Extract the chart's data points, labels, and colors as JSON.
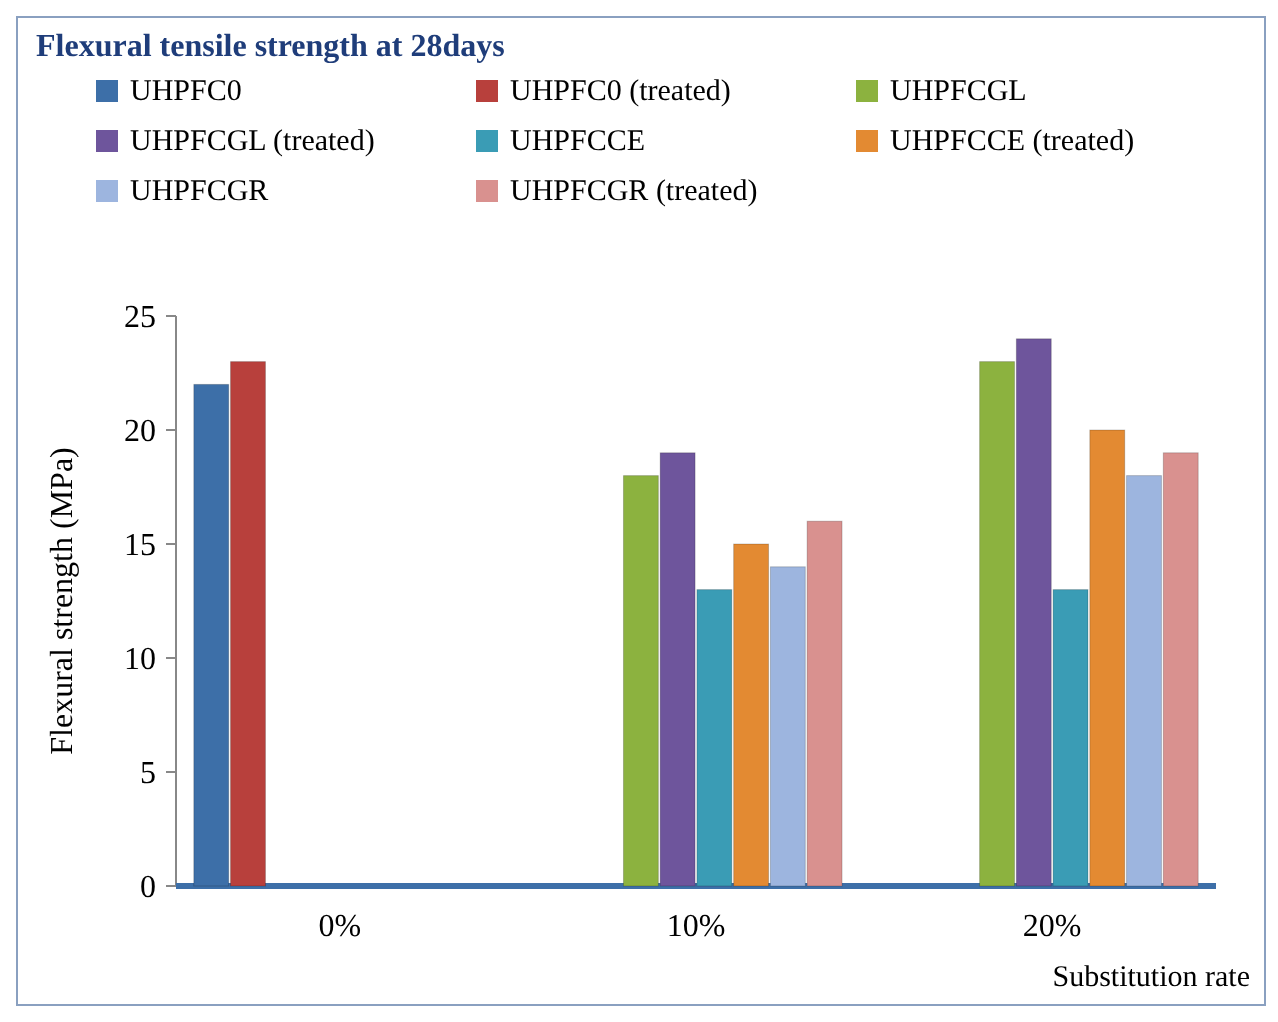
{
  "chart_data": {
    "type": "bar",
    "title": "Flexural tensile strength  at 28days",
    "xlabel": "Substitution rate",
    "ylabel": "Flexural strength  (MPa)",
    "categories": [
      "0%",
      "10%",
      "20%"
    ],
    "series": [
      {
        "name": "UHPFC0",
        "color": "#3d6fa8",
        "values": [
          22,
          null,
          null
        ]
      },
      {
        "name": "UHPFC0 (treated)",
        "color": "#b8403c",
        "values": [
          23,
          null,
          null
        ]
      },
      {
        "name": "UHPFCGL",
        "color": "#8cb23f",
        "values": [
          null,
          18,
          23
        ]
      },
      {
        "name": "UHPFCGL (treated)",
        "color": "#6e559c",
        "values": [
          null,
          19,
          24
        ]
      },
      {
        "name": "UHPFCCE",
        "color": "#3a9cb5",
        "values": [
          null,
          13,
          13
        ]
      },
      {
        "name": "UHPFCCE (treated)",
        "color": "#e38a32",
        "values": [
          null,
          15,
          20
        ]
      },
      {
        "name": "UHPFCGR",
        "color": "#9db5df",
        "values": [
          null,
          14,
          18
        ]
      },
      {
        "name": "UHPFCGR (treated)",
        "color": "#d9918f",
        "values": [
          null,
          16,
          19
        ]
      }
    ],
    "ylim": [
      0,
      25
    ],
    "yticks": [
      0,
      5,
      10,
      15,
      20,
      25
    ],
    "grid": false,
    "legend": "top"
  }
}
